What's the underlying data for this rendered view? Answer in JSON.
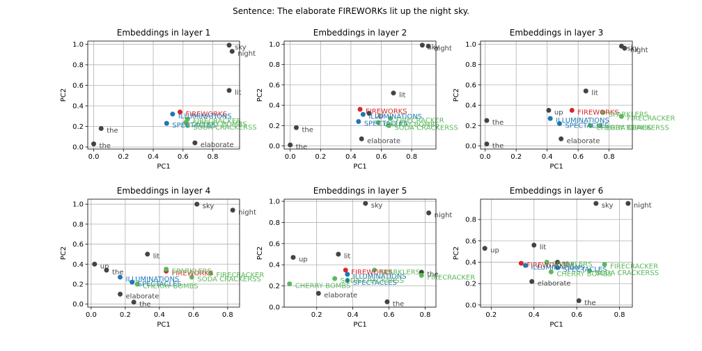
{
  "figure": {
    "suptitle": "Sentence: The elaborate FIREWORKs lit up the night sky."
  },
  "colors": {
    "gray": "#444444",
    "red": "#d62728",
    "blue": "#1f77b4",
    "green": "#5cb85c"
  },
  "chart_data": [
    {
      "type": "scatter",
      "title": "Embeddings in layer 1",
      "xlabel": "PC1",
      "ylabel": "PC2",
      "xlim": [
        -0.04,
        0.98
      ],
      "ylim": [
        -0.02,
        1.03
      ],
      "xticks": [
        0.0,
        0.2,
        0.4,
        0.6,
        0.8
      ],
      "yticks": [
        0.0,
        0.2,
        0.4,
        0.6,
        0.8,
        1.0
      ],
      "grid": true,
      "points": [
        {
          "label": "sky",
          "x": 0.91,
          "y": 0.99,
          "color": "gray"
        },
        {
          "label": "night",
          "x": 0.93,
          "y": 0.93,
          "color": "gray"
        },
        {
          "label": "lit",
          "x": 0.91,
          "y": 0.55,
          "color": "gray"
        },
        {
          "label": "the",
          "x": 0.05,
          "y": 0.18,
          "color": "gray"
        },
        {
          "label": "the",
          "x": 0.0,
          "y": 0.03,
          "color": "gray"
        },
        {
          "label": "elaborate",
          "x": 0.68,
          "y": 0.04,
          "color": "gray"
        },
        {
          "label": "FIREWORKS",
          "x": 0.58,
          "y": 0.34,
          "color": "red"
        },
        {
          "label": "ILLUMINATIONS",
          "x": 0.53,
          "y": 0.32,
          "color": "blue"
        },
        {
          "label": "SPECTACLES",
          "x": 0.49,
          "y": 0.23,
          "color": "blue"
        },
        {
          "label": "FIRECRACKER",
          "x": 0.63,
          "y": 0.27,
          "color": "green"
        },
        {
          "label": "CHERRY BOMBS",
          "x": 0.62,
          "y": 0.24,
          "color": "green"
        },
        {
          "label": "SODA CRACKERSS",
          "x": 0.63,
          "y": 0.21,
          "color": "green"
        }
      ]
    },
    {
      "type": "scatter",
      "title": "Embeddings in layer 2",
      "xlabel": "PC1",
      "ylabel": "PC2",
      "xlim": [
        -0.04,
        0.96
      ],
      "ylim": [
        -0.03,
        1.03
      ],
      "xticks": [
        0.0,
        0.2,
        0.4,
        0.6,
        0.8
      ],
      "yticks": [
        0.0,
        0.2,
        0.4,
        0.6,
        0.8,
        1.0
      ],
      "grid": true,
      "points": [
        {
          "label": "sky",
          "x": 0.87,
          "y": 0.99,
          "color": "gray"
        },
        {
          "label": "night",
          "x": 0.91,
          "y": 0.98,
          "color": "gray"
        },
        {
          "label": "lit",
          "x": 0.68,
          "y": 0.52,
          "color": "gray"
        },
        {
          "label": "the",
          "x": 0.04,
          "y": 0.18,
          "color": "gray"
        },
        {
          "label": "the",
          "x": 0.0,
          "y": 0.01,
          "color": "gray"
        },
        {
          "label": "elaborate",
          "x": 0.47,
          "y": 0.07,
          "color": "gray"
        },
        {
          "label": "up",
          "x": 0.52,
          "y": 0.32,
          "color": "gray"
        },
        {
          "label": "FIREWORKS",
          "x": 0.46,
          "y": 0.36,
          "color": "red"
        },
        {
          "label": "ILLUMINATIONS",
          "x": 0.48,
          "y": 0.31,
          "color": "blue"
        },
        {
          "label": "SPECTACLES",
          "x": 0.45,
          "y": 0.24,
          "color": "blue"
        },
        {
          "label": "FIRECRACKER",
          "x": 0.66,
          "y": 0.27,
          "color": "green"
        },
        {
          "label": "CHERRY BOMBS",
          "x": 0.58,
          "y": 0.23,
          "color": "green"
        },
        {
          "label": "SODA CRACKERSS",
          "x": 0.65,
          "y": 0.2,
          "color": "green"
        }
      ]
    },
    {
      "type": "scatter",
      "title": "Embeddings in layer 3",
      "xlabel": "PC1",
      "ylabel": "PC2",
      "xlim": [
        -0.03,
        0.95
      ],
      "ylim": [
        -0.03,
        1.03
      ],
      "xticks": [
        0.0,
        0.2,
        0.4,
        0.6,
        0.8
      ],
      "yticks": [
        0.0,
        0.2,
        0.4,
        0.6,
        0.8,
        1.0
      ],
      "grid": true,
      "points": [
        {
          "label": "sky",
          "x": 0.88,
          "y": 0.98,
          "color": "gray"
        },
        {
          "label": "night",
          "x": 0.9,
          "y": 0.96,
          "color": "gray"
        },
        {
          "label": "lit",
          "x": 0.65,
          "y": 0.54,
          "color": "gray"
        },
        {
          "label": "the",
          "x": 0.01,
          "y": 0.25,
          "color": "gray"
        },
        {
          "label": "the",
          "x": 0.01,
          "y": 0.02,
          "color": "gray"
        },
        {
          "label": "elaborate",
          "x": 0.49,
          "y": 0.07,
          "color": "gray"
        },
        {
          "label": "up",
          "x": 0.41,
          "y": 0.35,
          "color": "gray"
        },
        {
          "label": "FIREWORKS",
          "x": 0.56,
          "y": 0.35,
          "color": "red"
        },
        {
          "label": "ILLUMINATIONS",
          "x": 0.42,
          "y": 0.27,
          "color": "blue"
        },
        {
          "label": "SPECTACLES",
          "x": 0.48,
          "y": 0.22,
          "color": "blue"
        },
        {
          "label": "FIRECRACKER",
          "x": 0.88,
          "y": 0.29,
          "color": "green"
        },
        {
          "label": "SPARKLERS",
          "x": 0.76,
          "y": 0.33,
          "color": "green"
        },
        {
          "label": "CHERRY BOMBS",
          "x": 0.68,
          "y": 0.2,
          "color": "green"
        },
        {
          "label": "SODA CRACKERSS",
          "x": 0.74,
          "y": 0.2,
          "color": "green"
        }
      ]
    },
    {
      "type": "scatter",
      "title": "Embeddings in layer 4",
      "xlabel": "PC1",
      "ylabel": "PC2",
      "xlim": [
        -0.02,
        0.87
      ],
      "ylim": [
        -0.03,
        1.05
      ],
      "xticks": [
        0.0,
        0.2,
        0.4,
        0.6,
        0.8
      ],
      "yticks": [
        0.0,
        0.2,
        0.4,
        0.6,
        0.8,
        1.0
      ],
      "grid": true,
      "points": [
        {
          "label": "sky",
          "x": 0.62,
          "y": 1.0,
          "color": "gray"
        },
        {
          "label": "night",
          "x": 0.83,
          "y": 0.94,
          "color": "gray"
        },
        {
          "label": "lit",
          "x": 0.33,
          "y": 0.5,
          "color": "gray"
        },
        {
          "label": "up",
          "x": 0.02,
          "y": 0.4,
          "color": "gray"
        },
        {
          "label": "the",
          "x": 0.09,
          "y": 0.34,
          "color": "gray"
        },
        {
          "label": "elaborate",
          "x": 0.17,
          "y": 0.1,
          "color": "gray"
        },
        {
          "label": "the",
          "x": 0.25,
          "y": 0.02,
          "color": "gray"
        },
        {
          "label": "FIREWORKS",
          "x": 0.44,
          "y": 0.33,
          "color": "red"
        },
        {
          "label": "ILLUMINATIONS",
          "x": 0.17,
          "y": 0.27,
          "color": "blue"
        },
        {
          "label": "SPECTACLES",
          "x": 0.24,
          "y": 0.22,
          "color": "blue"
        },
        {
          "label": "FIRECRACKER",
          "x": 0.7,
          "y": 0.31,
          "color": "green"
        },
        {
          "label": "SPARKLERS",
          "x": 0.44,
          "y": 0.35,
          "color": "green"
        },
        {
          "label": "CHERRY BOMBS",
          "x": 0.27,
          "y": 0.2,
          "color": "green"
        },
        {
          "label": "SODA CRACKERSS",
          "x": 0.59,
          "y": 0.27,
          "color": "green"
        }
      ]
    },
    {
      "type": "scatter",
      "title": "Embeddings in layer 5",
      "xlabel": "PC1",
      "ylabel": "PC2",
      "xlim": [
        0.02,
        0.86
      ],
      "ylim": [
        0.0,
        1.02
      ],
      "xticks": [
        0.2,
        0.4,
        0.6,
        0.8
      ],
      "yticks": [
        0.0,
        0.2,
        0.4,
        0.6,
        0.8,
        1.0
      ],
      "grid": true,
      "points": [
        {
          "label": "sky",
          "x": 0.47,
          "y": 0.98,
          "color": "gray"
        },
        {
          "label": "night",
          "x": 0.82,
          "y": 0.89,
          "color": "gray"
        },
        {
          "label": "up",
          "x": 0.07,
          "y": 0.47,
          "color": "gray"
        },
        {
          "label": "lit",
          "x": 0.32,
          "y": 0.5,
          "color": "gray"
        },
        {
          "label": "elaborate",
          "x": 0.21,
          "y": 0.13,
          "color": "gray"
        },
        {
          "label": "the",
          "x": 0.59,
          "y": 0.05,
          "color": "gray"
        },
        {
          "label": "the",
          "x": 0.78,
          "y": 0.33,
          "color": "gray"
        },
        {
          "label": "FIREWORKS",
          "x": 0.36,
          "y": 0.35,
          "color": "red"
        },
        {
          "label": "ILLUMINATIONS",
          "x": 0.37,
          "y": 0.31,
          "color": "blue"
        },
        {
          "label": "SPECTACLES",
          "x": 0.37,
          "y": 0.25,
          "color": "blue"
        },
        {
          "label": "FIRECRACKER",
          "x": 0.78,
          "y": 0.3,
          "color": "green"
        },
        {
          "label": "SPARKLERS",
          "x": 0.52,
          "y": 0.35,
          "color": "green"
        },
        {
          "label": "CHERRY BOMBS",
          "x": 0.05,
          "y": 0.22,
          "color": "green"
        },
        {
          "label": "SODA CRACKERSS",
          "x": 0.3,
          "y": 0.27,
          "color": "green"
        }
      ]
    },
    {
      "type": "scatter",
      "title": "Embeddings in layer 6",
      "xlabel": "PC1",
      "ylabel": "PC2",
      "xlim": [
        0.15,
        0.86
      ],
      "ylim": [
        -0.02,
        0.99
      ],
      "xticks": [
        0.2,
        0.4,
        0.6,
        0.8
      ],
      "yticks": [
        0.0,
        0.2,
        0.4,
        0.6,
        0.8
      ],
      "grid": true,
      "points": [
        {
          "label": "sky",
          "x": 0.69,
          "y": 0.95,
          "color": "gray"
        },
        {
          "label": "night",
          "x": 0.84,
          "y": 0.95,
          "color": "gray"
        },
        {
          "label": "up",
          "x": 0.17,
          "y": 0.53,
          "color": "gray"
        },
        {
          "label": "lit",
          "x": 0.4,
          "y": 0.56,
          "color": "gray"
        },
        {
          "label": "the",
          "x": 0.51,
          "y": 0.4,
          "color": "gray"
        },
        {
          "label": "elaborate",
          "x": 0.39,
          "y": 0.22,
          "color": "gray"
        },
        {
          "label": "the",
          "x": 0.61,
          "y": 0.04,
          "color": "gray"
        },
        {
          "label": "FIREWORKS",
          "x": 0.34,
          "y": 0.39,
          "color": "red"
        },
        {
          "label": "ILLUMINATIONS",
          "x": 0.36,
          "y": 0.37,
          "color": "blue"
        },
        {
          "label": "SPECTACLES",
          "x": 0.51,
          "y": 0.35,
          "color": "blue"
        },
        {
          "label": "FIRECRACKER",
          "x": 0.73,
          "y": 0.38,
          "color": "green"
        },
        {
          "label": "SPARKLERS",
          "x": 0.46,
          "y": 0.4,
          "color": "green"
        },
        {
          "label": "CHERRY BOMBS",
          "x": 0.48,
          "y": 0.31,
          "color": "green"
        },
        {
          "label": "SODA CRACKERSS",
          "x": 0.66,
          "y": 0.32,
          "color": "green"
        }
      ]
    }
  ]
}
